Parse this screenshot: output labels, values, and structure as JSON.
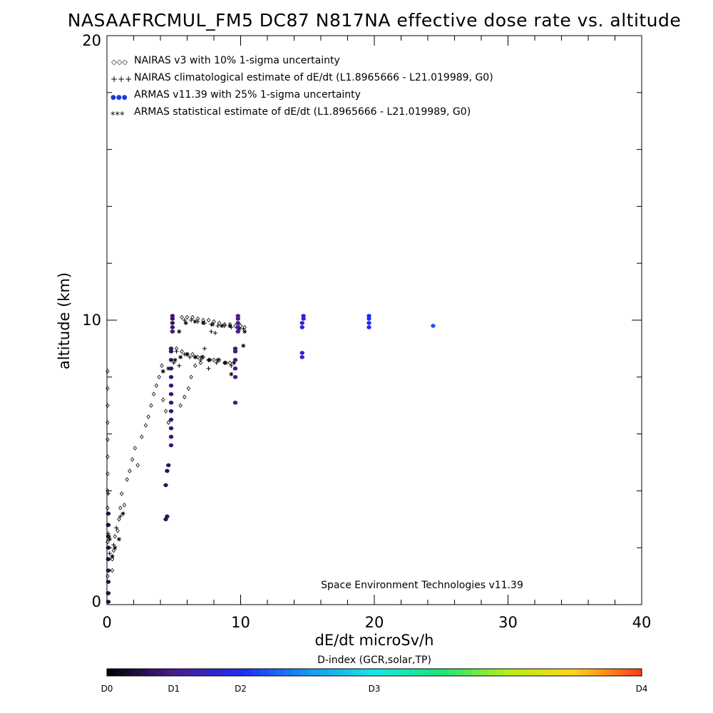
{
  "chart_data": {
    "type": "scatter",
    "title": "NASAAFRCMUL_FM5 DC87 N817NA effective dose rate vs. altitude",
    "xlabel": "dE/dt microSv/h",
    "ylabel": "altitude (km)",
    "xlim": [
      0,
      40
    ],
    "ylim": [
      0,
      20
    ],
    "x_ticks": [
      "0",
      "10",
      "20",
      "30",
      "40"
    ],
    "y_ticks": [
      "0",
      "10",
      "20"
    ],
    "legend_position": "top-left",
    "legend": [
      {
        "symbol": "◇◇◇",
        "label": "NAIRAS v3 with 10% 1-sigma uncertainty"
      },
      {
        "symbol": "+++",
        "label": "NAIRAS climatological estimate of dE/dt (L1.8965666 - L21.019989, G0)"
      },
      {
        "symbol": "●●●",
        "label": "ARMAS v11.39 with 25% 1-sigma uncertainty"
      },
      {
        "symbol": "***",
        "label": "ARMAS statistical estimate of dE/dt (L1.8965666 - L21.019989, G0)"
      }
    ],
    "credit": "Space Environment Technologies v11.39",
    "colorbar": {
      "title": "D-index (GCR,solar,TP)",
      "labels": [
        "D0",
        "D1",
        "D2",
        "D3",
        "D4"
      ],
      "label_positions": [
        0,
        0.125,
        0.25,
        0.5,
        1.0
      ]
    },
    "series": [
      {
        "name": "NAIRAS v3 with 10% 1-sigma uncertainty",
        "marker": "diamond",
        "points": [
          [
            0.05,
            8.2
          ],
          [
            0.05,
            7.6
          ],
          [
            0.05,
            7.0
          ],
          [
            0.05,
            6.4
          ],
          [
            0.05,
            5.8
          ],
          [
            0.05,
            5.2
          ],
          [
            0.05,
            4.6
          ],
          [
            0.05,
            4.0
          ],
          [
            0.05,
            3.4
          ],
          [
            0.05,
            2.8
          ],
          [
            0.05,
            2.2
          ],
          [
            0.05,
            1.6
          ],
          [
            0.05,
            1.0
          ],
          [
            0.05,
            0.4
          ],
          [
            0.4,
            1.6
          ],
          [
            0.4,
            1.2
          ],
          [
            0.5,
            1.9
          ],
          [
            0.6,
            2.4
          ],
          [
            0.8,
            2.6
          ],
          [
            0.9,
            3.0
          ],
          [
            1.0,
            3.4
          ],
          [
            1.1,
            3.9
          ],
          [
            1.3,
            3.5
          ],
          [
            1.5,
            4.4
          ],
          [
            1.7,
            4.7
          ],
          [
            1.9,
            5.1
          ],
          [
            2.1,
            5.5
          ],
          [
            2.3,
            4.9
          ],
          [
            2.6,
            5.9
          ],
          [
            2.9,
            6.3
          ],
          [
            3.1,
            6.6
          ],
          [
            3.3,
            7.0
          ],
          [
            3.5,
            7.4
          ],
          [
            3.7,
            7.7
          ],
          [
            3.9,
            8.0
          ],
          [
            4.1,
            8.4
          ],
          [
            4.2,
            7.2
          ],
          [
            4.4,
            6.8
          ],
          [
            4.6,
            6.4
          ],
          [
            5.2,
            9.0
          ],
          [
            5.6,
            8.9
          ],
          [
            6.0,
            8.8
          ],
          [
            6.4,
            8.8
          ],
          [
            6.8,
            8.7
          ],
          [
            7.2,
            8.7
          ],
          [
            7.6,
            8.6
          ],
          [
            8.0,
            8.6
          ],
          [
            8.4,
            8.6
          ],
          [
            8.8,
            8.5
          ],
          [
            9.2,
            8.5
          ],
          [
            5.6,
            10.1
          ],
          [
            6.0,
            10.1
          ],
          [
            6.4,
            10.1
          ],
          [
            6.8,
            10.05
          ],
          [
            7.2,
            10.0
          ],
          [
            7.6,
            10.0
          ],
          [
            8.0,
            9.95
          ],
          [
            8.4,
            9.9
          ],
          [
            8.8,
            9.85
          ],
          [
            9.2,
            9.85
          ],
          [
            9.6,
            9.8
          ],
          [
            10.0,
            9.8
          ],
          [
            10.3,
            9.75
          ],
          [
            5.5,
            7.0
          ],
          [
            5.8,
            7.3
          ],
          [
            6.1,
            7.6
          ],
          [
            6.3,
            8.0
          ],
          [
            6.6,
            8.4
          ],
          [
            7.0,
            8.5
          ]
        ]
      },
      {
        "name": "NAIRAS climatological estimate of dE/dt (L1.8965666 - L21.019989, G0)",
        "marker": "plus",
        "points": [
          [
            0.1,
            3.9
          ],
          [
            0.1,
            2.5
          ],
          [
            0.2,
            1.8
          ],
          [
            0.5,
            2.1
          ],
          [
            0.7,
            2.7
          ],
          [
            1.0,
            3.1
          ],
          [
            5.2,
            8.9
          ],
          [
            5.8,
            8.8
          ],
          [
            6.2,
            8.7
          ],
          [
            6.6,
            8.7
          ],
          [
            7.0,
            8.6
          ],
          [
            7.6,
            8.6
          ],
          [
            8.2,
            8.5
          ],
          [
            8.8,
            8.5
          ],
          [
            9.3,
            8.4
          ],
          [
            5.0,
            8.5
          ],
          [
            5.4,
            8.4
          ],
          [
            7.3,
            9.0
          ],
          [
            7.6,
            8.3
          ],
          [
            5.8,
            10.0
          ],
          [
            6.3,
            10.0
          ],
          [
            6.8,
            9.95
          ],
          [
            7.3,
            9.9
          ],
          [
            7.8,
            9.85
          ],
          [
            8.3,
            9.8
          ],
          [
            8.8,
            9.8
          ],
          [
            9.3,
            9.75
          ],
          [
            9.8,
            9.7
          ],
          [
            10.2,
            9.7
          ],
          [
            7.8,
            9.6
          ],
          [
            8.1,
            9.55
          ]
        ]
      },
      {
        "name": "ARMAS statistical estimate of dE/dt (L1.8965666 - L21.019989, G0)",
        "marker": "asterisk",
        "points": [
          [
            0.2,
            2.3
          ],
          [
            0.4,
            1.7
          ],
          [
            0.6,
            2.0
          ],
          [
            0.9,
            2.3
          ],
          [
            1.2,
            3.2
          ],
          [
            4.2,
            8.2
          ],
          [
            4.6,
            8.3
          ],
          [
            5.1,
            8.6
          ],
          [
            5.5,
            8.7
          ],
          [
            6.0,
            8.8
          ],
          [
            6.6,
            8.7
          ],
          [
            7.1,
            8.7
          ],
          [
            7.7,
            8.6
          ],
          [
            8.3,
            8.6
          ],
          [
            8.9,
            8.5
          ],
          [
            9.5,
            8.5
          ],
          [
            9.3,
            8.1
          ],
          [
            10.2,
            9.1
          ],
          [
            5.4,
            9.6
          ],
          [
            5.9,
            9.9
          ],
          [
            6.6,
            9.95
          ],
          [
            7.2,
            9.9
          ],
          [
            7.9,
            9.85
          ],
          [
            8.6,
            9.8
          ],
          [
            9.2,
            9.8
          ],
          [
            9.9,
            9.7
          ],
          [
            10.3,
            9.6
          ]
        ]
      },
      {
        "name": "ARMAS v11.39 with 25% 1-sigma uncertainty",
        "marker": "dot",
        "points": [
          [
            0.1,
            0.1,
            0.05
          ],
          [
            0.1,
            0.4,
            0.05
          ],
          [
            0.1,
            0.8,
            0.05
          ],
          [
            0.1,
            1.2,
            0.05
          ],
          [
            0.1,
            1.6,
            0.05
          ],
          [
            0.1,
            2.0,
            0.05
          ],
          [
            0.1,
            2.4,
            0.05
          ],
          [
            0.1,
            2.8,
            0.05
          ],
          [
            0.1,
            3.2,
            0.05
          ],
          [
            4.4,
            3.0,
            0.08
          ],
          [
            4.5,
            3.1,
            0.08
          ],
          [
            4.4,
            4.2,
            0.08
          ],
          [
            4.5,
            4.7,
            0.08
          ],
          [
            4.6,
            4.9,
            0.08
          ],
          [
            4.8,
            5.6,
            0.09
          ],
          [
            4.8,
            5.9,
            0.09
          ],
          [
            4.8,
            6.2,
            0.09
          ],
          [
            4.8,
            6.5,
            0.09
          ],
          [
            4.8,
            6.8,
            0.09
          ],
          [
            4.8,
            7.1,
            0.09
          ],
          [
            4.8,
            7.4,
            0.09
          ],
          [
            4.8,
            7.7,
            0.09
          ],
          [
            4.8,
            8.0,
            0.09
          ],
          [
            4.8,
            8.3,
            0.09
          ],
          [
            4.8,
            8.6,
            0.09
          ],
          [
            4.8,
            8.9,
            0.09
          ],
          [
            4.8,
            9.0,
            0.09
          ],
          [
            4.9,
            9.6,
            0.1
          ],
          [
            4.9,
            9.75,
            0.1
          ],
          [
            4.9,
            9.9,
            0.1
          ],
          [
            4.9,
            10.05,
            0.1
          ],
          [
            4.9,
            10.15,
            0.1
          ],
          [
            9.6,
            7.1,
            0.11
          ],
          [
            9.6,
            8.0,
            0.11
          ],
          [
            9.6,
            8.3,
            0.11
          ],
          [
            9.6,
            8.6,
            0.11
          ],
          [
            9.6,
            8.9,
            0.11
          ],
          [
            9.6,
            9.0,
            0.11
          ],
          [
            9.8,
            9.6,
            0.12
          ],
          [
            9.8,
            9.75,
            0.12
          ],
          [
            9.8,
            9.9,
            0.12
          ],
          [
            9.8,
            10.05,
            0.12
          ],
          [
            9.8,
            10.15,
            0.12
          ],
          [
            14.6,
            8.7,
            0.2
          ],
          [
            14.6,
            8.85,
            0.2
          ],
          [
            14.6,
            9.75,
            0.2
          ],
          [
            14.6,
            9.9,
            0.2
          ],
          [
            14.7,
            10.05,
            0.2
          ],
          [
            14.7,
            10.15,
            0.2
          ],
          [
            19.6,
            9.75,
            0.24
          ],
          [
            19.6,
            9.9,
            0.24
          ],
          [
            19.6,
            10.05,
            0.24
          ],
          [
            19.6,
            10.15,
            0.24
          ],
          [
            24.4,
            9.8,
            0.3
          ]
        ]
      }
    ]
  }
}
